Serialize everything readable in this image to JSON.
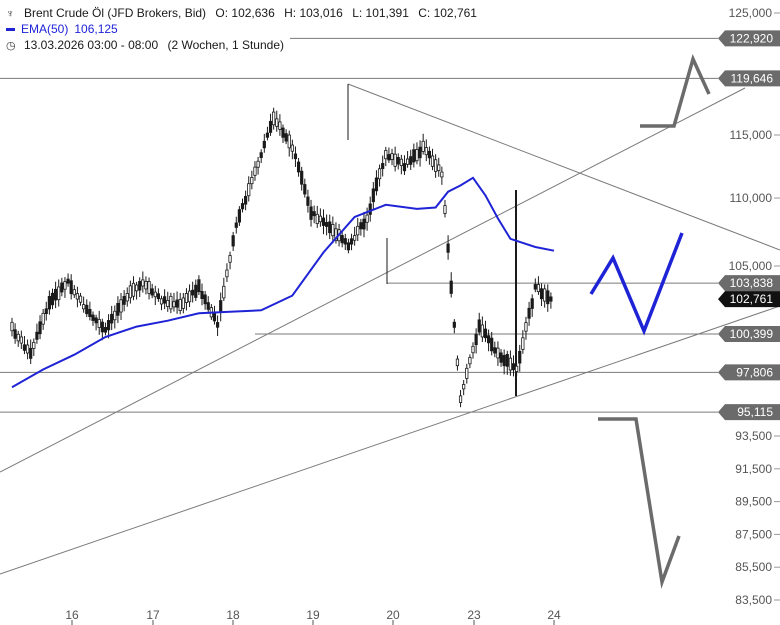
{
  "header": {
    "instrument": "Brent Crude Öl (JFD Brokers, Bid)",
    "open": "O: 102,636",
    "high": "H: 103,016",
    "low": "L: 101,391",
    "close": "C: 102,761",
    "ema_label": "EMA(50)",
    "ema_value": "106,125",
    "timerange": "13.03.2026 03:00 - 08:00",
    "period": "(2 Wochen, 1 Stunde)"
  },
  "chart_data": {
    "type": "line",
    "x_ticks": [
      "16",
      "17",
      "18",
      "19",
      "20",
      "23",
      "24"
    ],
    "y_ticks": [
      "125,000",
      "115,000",
      "110,000",
      "105,000",
      "93,500",
      "91,500",
      "89,500",
      "87,500",
      "85,500",
      "83,500"
    ],
    "level_labels": [
      "122,920",
      "119,646",
      "103,838",
      "100,399",
      "97,806",
      "95,115"
    ],
    "current_price_label": "102,761",
    "price_series": {
      "name": "Brent",
      "x": [
        0,
        0.3,
        0.6,
        0.9,
        1.2,
        1.5,
        1.8,
        2.1,
        2.4,
        2.7,
        3.0,
        3.3,
        3.6,
        3.9,
        4.2,
        4.5,
        4.8,
        5.1,
        5.4,
        5.7,
        6.0,
        6.3,
        6.6,
        6.9,
        7.2,
        7.5,
        7.8,
        8.1,
        8.4,
        8.7
      ],
      "y": [
        100.8,
        99.0,
        102.5,
        104.0,
        102.0,
        100.6,
        102.8,
        103.8,
        102.7,
        102.3,
        103.6,
        101.0,
        108.0,
        112.0,
        116.5,
        114.0,
        109.0,
        107.8,
        106.5,
        108.5,
        113.5,
        112.5,
        114.0,
        112.0,
        96.0,
        101.0,
        99.0,
        98.0,
        103.5,
        102.761
      ]
    },
    "ema_series": {
      "name": "EMA(50)",
      "x": [
        0,
        0.5,
        1.0,
        1.5,
        2.0,
        2.5,
        3.0,
        3.5,
        4.0,
        4.5,
        5.0,
        5.5,
        6.0,
        6.5,
        6.8,
        7.0,
        7.2,
        7.4,
        7.6,
        7.8,
        8.0,
        8.2,
        8.4,
        8.7
      ],
      "y": [
        96.8,
        98.0,
        99.0,
        100.2,
        100.9,
        101.3,
        101.8,
        101.9,
        102.0,
        103.0,
        106.0,
        108.6,
        109.5,
        109.2,
        109.3,
        110.5,
        111.0,
        111.6,
        110.2,
        108.5,
        107.0,
        106.7,
        106.4,
        106.125
      ]
    },
    "horizontal_levels": [
      122.92,
      119.646,
      103.838,
      100.399,
      97.806,
      95.115
    ],
    "ylim": [
      83.5,
      125.5
    ]
  },
  "colors": {
    "candle": "#1a1a1a",
    "ema": "#1f23d6",
    "projection_up": "#1f23d6",
    "projection_scenario": "#6b6b6b",
    "level_line": "#7a7a7a",
    "label_bg": "#6b6b6b",
    "current_bg": "#111111"
  }
}
